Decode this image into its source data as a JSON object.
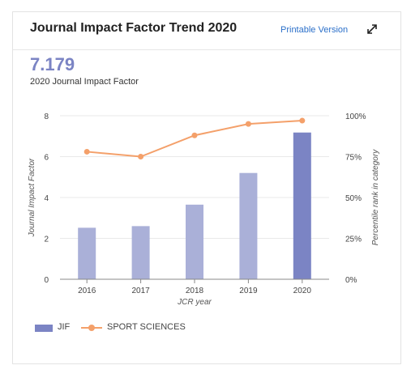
{
  "header": {
    "title": "Journal Impact Factor Trend 2020",
    "printable_label": "Printable Version",
    "expand_icon": "expand-diagonal-arrows-icon"
  },
  "metric": {
    "value": "7.179",
    "label": "2020 Journal Impact Factor"
  },
  "colors": {
    "bar": "#aab0d8",
    "bar_highlight": "#7b84c4",
    "line": "#f4a06a",
    "axis": "#888888",
    "grid": "#e9e9e9"
  },
  "chart_data": {
    "type": "bar",
    "categories": [
      "2016",
      "2017",
      "2018",
      "2019",
      "2020"
    ],
    "series": [
      {
        "name": "JIF",
        "type": "bar",
        "axis": "left",
        "values": [
          2.52,
          2.6,
          3.65,
          5.2,
          7.179
        ]
      },
      {
        "name": "SPORT SCIENCES",
        "type": "line",
        "axis": "right",
        "values": [
          78,
          75,
          88,
          95,
          97
        ]
      }
    ],
    "xlabel": "JCR year",
    "ylabel": "Journal Impact Factor",
    "y2label": "Percentile rank in category",
    "ylim": [
      0,
      8
    ],
    "y2lim": [
      0,
      100
    ],
    "yticks": [
      "0",
      "2",
      "4",
      "6",
      "8"
    ],
    "y2ticks": [
      "0%",
      "25%",
      "50%",
      "75%",
      "100%"
    ],
    "grid": true,
    "legend_position": "bottom-left"
  }
}
